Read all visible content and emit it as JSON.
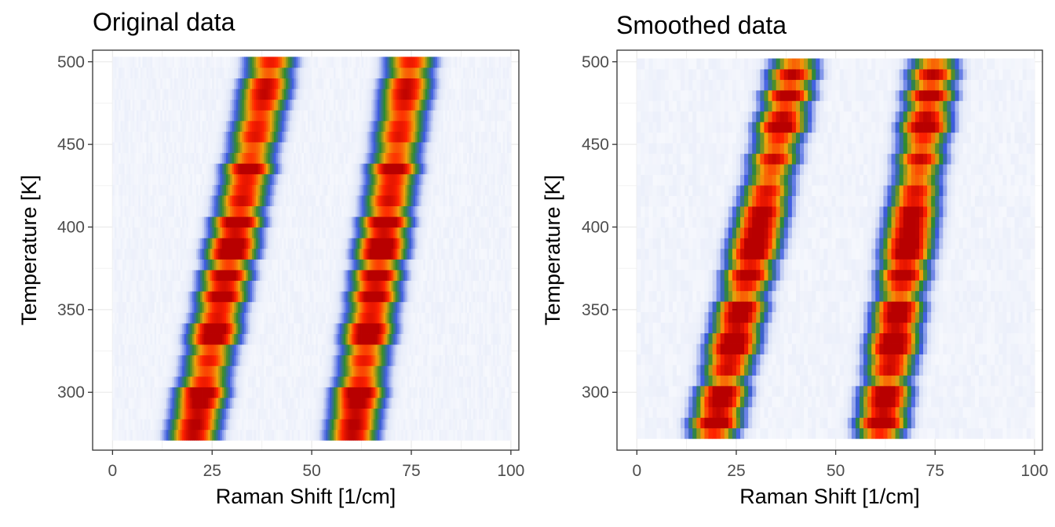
{
  "chart_data": [
    {
      "type": "heatmap",
      "title": "Original data",
      "xlabel": "Raman Shift [1/cm]",
      "ylabel": "Temperature [K]",
      "xlim": [
        -5,
        102
      ],
      "ylim": [
        265,
        507
      ],
      "xticks": [
        0,
        25,
        50,
        75,
        100
      ],
      "yticks": [
        300,
        350,
        400,
        450,
        500
      ],
      "grid": true,
      "x_range": [
        0,
        100
      ],
      "y_range": [
        271,
        503
      ],
      "row_count": 36,
      "peaks": [
        {
          "center_at_min_temp": 20,
          "center_at_max_temp": 40,
          "width": 4.5
        },
        {
          "center_at_min_temp": 60,
          "center_at_max_temp": 75,
          "width": 4.5
        }
      ],
      "color_scale": [
        "#ffffff",
        "#dde4f7",
        "#3d5be0",
        "#2e8b2e",
        "#f2a20a",
        "#ff2200",
        "#b80000"
      ],
      "smoothed": false
    },
    {
      "type": "heatmap",
      "title": "Smoothed data",
      "xlabel": "Raman Shift [1/cm]",
      "ylabel": "Temperature [K]",
      "xlim": [
        -5,
        102
      ],
      "ylim": [
        265,
        507
      ],
      "xticks": [
        0,
        25,
        50,
        75,
        100
      ],
      "yticks": [
        300,
        350,
        400,
        450,
        500
      ],
      "grid": true,
      "x_range": [
        0,
        100
      ],
      "y_range": [
        272,
        502
      ],
      "row_count": 36,
      "peaks": [
        {
          "center_at_min_temp": 19,
          "center_at_max_temp": 40,
          "width": 4.5
        },
        {
          "center_at_min_temp": 61,
          "center_at_max_temp": 75,
          "width": 4.5
        }
      ],
      "color_scale": [
        "#ffffff",
        "#dde4f7",
        "#3d5be0",
        "#2e8b2e",
        "#f2a20a",
        "#ff2200",
        "#b80000"
      ],
      "smoothed": true
    }
  ]
}
